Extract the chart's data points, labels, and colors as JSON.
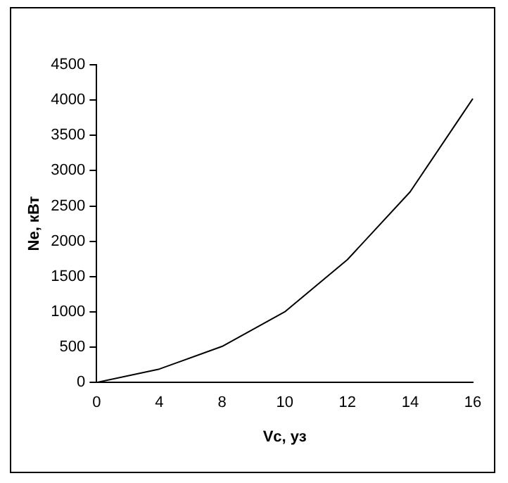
{
  "chart_data": {
    "type": "line",
    "xlabel": "Vс, уз",
    "ylabel": "Nе, кВт",
    "categories": [
      "0",
      "4",
      "8",
      "10",
      "12",
      "14",
      "16"
    ],
    "series": [
      {
        "color": "#000000",
        "values": [
          0,
          190,
          510,
          1000,
          1740,
          2700,
          4020
        ]
      }
    ],
    "ylim": [
      0,
      4500
    ],
    "yticks": [
      0,
      500,
      1000,
      1500,
      2000,
      2500,
      3000,
      3500,
      4000,
      4500
    ],
    "grid": false,
    "legend": false,
    "marker": "none",
    "line_style": "solid"
  }
}
